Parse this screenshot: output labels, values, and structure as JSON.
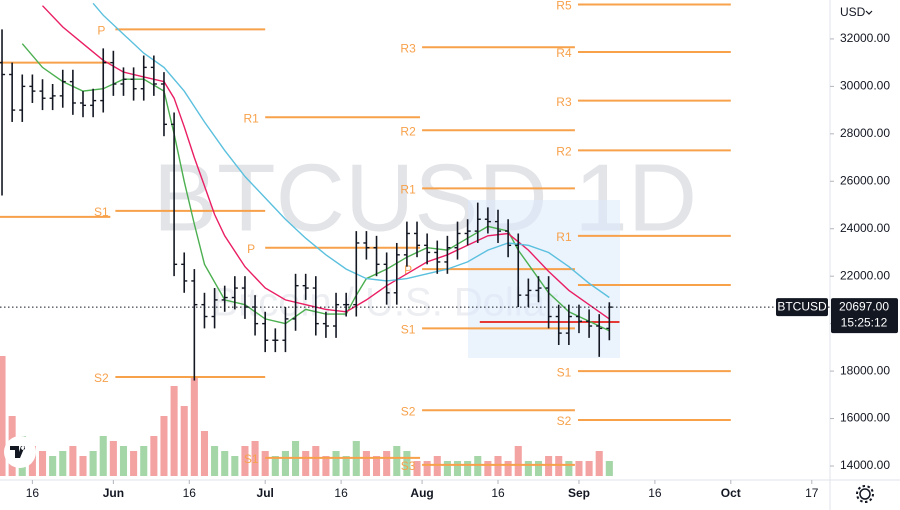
{
  "chart_data": {
    "type": "ohlc",
    "symbol": "BTCUSD",
    "watermark": "BTCUSD 1D",
    "watermark_subtitle": "Bitcoin / U.S. Dollar",
    "currency": "USD",
    "last_price": {
      "value": 20697,
      "label": "20697.00"
    },
    "countdown": "15:25:12",
    "bar_color": "#131722",
    "xlim": [
      -0.2,
      81.8
    ],
    "xticks": [
      {
        "value": 3,
        "label": "16"
      },
      {
        "value": 11,
        "label": "Jun"
      },
      {
        "value": 18.5,
        "label": "16"
      },
      {
        "value": 26,
        "label": "Jul"
      },
      {
        "value": 33.5,
        "label": "16"
      },
      {
        "value": 41.5,
        "label": "Aug"
      },
      {
        "value": 49,
        "label": "16"
      },
      {
        "value": 57,
        "label": "Sep"
      },
      {
        "value": 64.5,
        "label": "16"
      },
      {
        "value": 72,
        "label": "Oct"
      },
      {
        "value": 80,
        "label": "17"
      }
    ],
    "ylim": [
      13410,
      33640
    ],
    "yticks": [
      {
        "value": 14000,
        "label": "14000.00"
      },
      {
        "value": 16000,
        "label": "16000.00"
      },
      {
        "value": 18000,
        "label": "18000.00"
      },
      {
        "value": 20000,
        "label": "20000.00"
      },
      {
        "value": 22000,
        "label": "22000.00"
      },
      {
        "value": 24000,
        "label": "24000.00"
      },
      {
        "value": 26000,
        "label": "26000.00"
      },
      {
        "value": 28000,
        "label": "28000.00"
      },
      {
        "value": 30000,
        "label": "30000.00"
      },
      {
        "value": 32000,
        "label": "32000.00"
      }
    ],
    "open": [
      31000,
      30500,
      29000,
      30000,
      29800,
      29500,
      29600,
      30200,
      29300,
      29200,
      29400,
      31000,
      30100,
      30300,
      29900,
      30800,
      30100,
      28400,
      22500,
      21800,
      20800,
      20300,
      21000,
      21100,
      21500,
      20700,
      20000,
      19300,
      19300,
      20200,
      21600,
      21500,
      20000,
      19900,
      20800,
      20800,
      23400,
      23200,
      22500,
      21300,
      22900,
      23800,
      23300,
      23000,
      22600,
      23200,
      23800,
      23900,
      24400,
      24300,
      23900,
      23300,
      21200,
      21400,
      21500,
      20300,
      19600,
      20300,
      20100,
      19900,
      19800
    ],
    "high": [
      32400,
      31000,
      30500,
      30500,
      30300,
      30100,
      30700,
      30700,
      29800,
      29900,
      31600,
      31500,
      30800,
      30800,
      31300,
      31300,
      30600,
      28900,
      23000,
      22300,
      21300,
      21500,
      21600,
      22000,
      22000,
      21200,
      20500,
      19800,
      20700,
      22100,
      22100,
      22000,
      20500,
      21300,
      21300,
      23900,
      23900,
      23700,
      23000,
      23400,
      24300,
      24300,
      23800,
      23500,
      23700,
      24300,
      24400,
      25100,
      24900,
      24800,
      24400,
      23800,
      21900,
      22000,
      22000,
      20800,
      20800,
      20800,
      20600,
      20400,
      20900
    ],
    "low": [
      25400,
      28500,
      28500,
      29300,
      29000,
      29000,
      29100,
      28800,
      28700,
      28700,
      28900,
      29600,
      29600,
      29400,
      29400,
      29600,
      27900,
      22000,
      21300,
      17600,
      19800,
      19800,
      20500,
      20600,
      20200,
      19500,
      18800,
      18800,
      18800,
      19700,
      21000,
      19500,
      19400,
      19400,
      20300,
      20300,
      22700,
      22000,
      20800,
      20800,
      22400,
      22800,
      22500,
      22100,
      22100,
      22700,
      23300,
      23400,
      23800,
      23400,
      22800,
      20700,
      20700,
      20900,
      19800,
      19100,
      19100,
      19600,
      19400,
      18600,
      19300
    ],
    "close": [
      30500,
      29000,
      30000,
      29800,
      29500,
      29600,
      30200,
      29300,
      29200,
      29400,
      31000,
      30100,
      30300,
      29900,
      30800,
      30100,
      28400,
      22500,
      21800,
      20800,
      20300,
      21000,
      21100,
      21500,
      20700,
      20000,
      19300,
      19300,
      20200,
      21600,
      21500,
      20000,
      19900,
      20800,
      20800,
      23400,
      23200,
      22500,
      21300,
      22900,
      23800,
      23300,
      23000,
      22600,
      23200,
      23800,
      23900,
      24400,
      24300,
      23900,
      23300,
      21200,
      21400,
      21500,
      20300,
      19600,
      20300,
      20100,
      19900,
      19800,
      20697
    ],
    "volume": [
      120,
      60,
      40,
      30,
      25,
      20,
      25,
      30,
      20,
      25,
      40,
      35,
      30,
      25,
      30,
      40,
      60,
      90,
      70,
      100,
      45,
      30,
      25,
      20,
      30,
      35,
      25,
      20,
      25,
      35,
      25,
      30,
      20,
      25,
      20,
      35,
      25,
      20,
      25,
      30,
      25,
      15,
      15,
      20,
      15,
      15,
      15,
      20,
      15,
      20,
      15,
      30,
      15,
      15,
      20,
      20,
      15,
      15,
      15,
      25,
      15
    ],
    "volume_ylim": [
      0,
      120
    ],
    "volume_colors": {
      "up": "#a5d6a7",
      "down": "#f4a3a3"
    },
    "series": [
      {
        "color": "#4caf50",
        "x": [
          2,
          4,
          6,
          8,
          10,
          12,
          14,
          16,
          17,
          18,
          19,
          20,
          22,
          24,
          26,
          28,
          30,
          32,
          34,
          35,
          36,
          38,
          40,
          42,
          44,
          46,
          48,
          50,
          51,
          52,
          54,
          56,
          58,
          60
        ],
        "values": [
          31800,
          30800,
          30200,
          29800,
          29900,
          30300,
          30300,
          29800,
          28000,
          26000,
          24200,
          22500,
          21000,
          20800,
          20200,
          20000,
          20600,
          20400,
          20400,
          21200,
          21900,
          22300,
          22800,
          23200,
          23100,
          23600,
          24100,
          23900,
          23100,
          22500,
          21300,
          20500,
          20100,
          19700
        ]
      },
      {
        "color": "#e91e63",
        "x": [
          4,
          6,
          8,
          10,
          12,
          14,
          16,
          17,
          18,
          19,
          20,
          21,
          22,
          24,
          26,
          28,
          30,
          32,
          34,
          36,
          38,
          40,
          42,
          44,
          46,
          48,
          50,
          52,
          54,
          56,
          58,
          60
        ],
        "values": [
          33400,
          32500,
          31800,
          31100,
          30600,
          30400,
          30200,
          29500,
          28300,
          27000,
          25800,
          24600,
          23700,
          22400,
          21500,
          21000,
          20800,
          20600,
          20500,
          21000,
          21600,
          22100,
          22600,
          22900,
          23300,
          23700,
          23800,
          23100,
          22200,
          21400,
          20800,
          20200
        ]
      },
      {
        "color": "#5bc0de",
        "x": [
          9,
          10,
          12,
          14,
          16,
          18,
          20,
          22,
          24,
          26,
          28,
          30,
          32,
          34,
          36,
          38,
          40,
          42,
          44,
          46,
          48,
          50,
          52,
          54,
          56,
          58,
          60
        ],
        "values": [
          33500,
          33000,
          32200,
          31400,
          30800,
          29800,
          28500,
          27300,
          26200,
          25300,
          24400,
          23600,
          22900,
          22300,
          21900,
          21800,
          21900,
          22100,
          22300,
          22600,
          23100,
          23400,
          23300,
          23000,
          22400,
          21700,
          21100
        ]
      }
    ],
    "level_color": "#f7a14b",
    "levels": [
      {
        "value": 31000,
        "start": -0.2,
        "end": 10.7
      },
      {
        "value": 24500,
        "start": -0.2,
        "end": 10.7
      },
      {
        "label": "P",
        "value": 32400,
        "start": 11.2,
        "end": 26
      },
      {
        "label": "S1",
        "value": 24750,
        "start": 11.2,
        "end": 26
      },
      {
        "label": "S2",
        "value": 17750,
        "start": 11.2,
        "end": 26
      },
      {
        "label": "R1",
        "value": 28700,
        "start": 26,
        "end": 41.3
      },
      {
        "label": "P",
        "value": 23200,
        "start": 26,
        "end": 41.3
      },
      {
        "label": "S1",
        "value": 14340,
        "start": 26,
        "end": 41.3
      },
      {
        "label": "R3",
        "value": 31650,
        "start": 41.5,
        "end": 56.6
      },
      {
        "label": "R2",
        "value": 28150,
        "start": 41.5,
        "end": 56.6
      },
      {
        "label": "R1",
        "value": 25700,
        "start": 41.5,
        "end": 56.6
      },
      {
        "label": "P",
        "value": 22300,
        "start": 41.5,
        "end": 56.6
      },
      {
        "label": "S1",
        "value": 19800,
        "start": 41.5,
        "end": 56.6
      },
      {
        "label": "S2",
        "value": 16350,
        "start": 41.5,
        "end": 56.6
      },
      {
        "label": "S3",
        "value": 14050,
        "start": 41.5,
        "end": 56.6
      },
      {
        "label": "R5",
        "value": 33450,
        "start": 56.9,
        "end": 72
      },
      {
        "label": "R4",
        "value": 31450,
        "start": 56.9,
        "end": 72
      },
      {
        "label": "R3",
        "value": 29400,
        "start": 56.9,
        "end": 72
      },
      {
        "label": "R2",
        "value": 27300,
        "start": 56.9,
        "end": 72
      },
      {
        "label": "R1",
        "value": 23700,
        "start": 56.9,
        "end": 72
      },
      {
        "value": 21630,
        "start": 56.9,
        "end": 72
      },
      {
        "label": "S1",
        "value": 18000,
        "start": 56.9,
        "end": 72
      },
      {
        "label": "S2",
        "value": 15940,
        "start": 56.9,
        "end": 72
      }
    ],
    "poc": {
      "value": 20070,
      "start": 47.2,
      "end": 61,
      "color": "#e53935"
    }
  }
}
